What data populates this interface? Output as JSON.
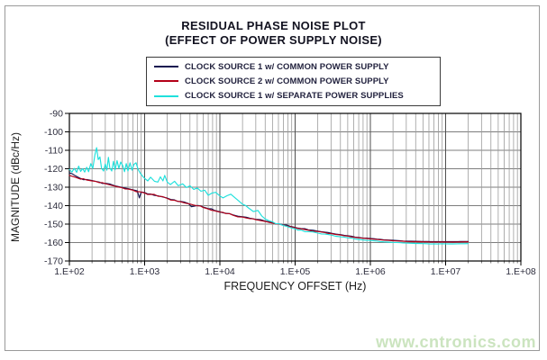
{
  "page": {
    "watermark": "www.cntronics.com",
    "watermark_color": "#cbe4bf"
  },
  "chart_data": {
    "type": "line",
    "title": "RESIDUAL PHASE NOISE PLOT",
    "subtitle": "(EFFECT OF POWER SUPPLY NOISE)",
    "xlabel": "FREQUENCY OFFSET (Hz)",
    "ylabel": "MAGNITUDE (dBc/Hz)",
    "x_scale": "log",
    "xlim": [
      100,
      100000000
    ],
    "ylim": [
      -170,
      -90
    ],
    "grid": true,
    "legend_position": "top",
    "x_ticks": [
      {
        "label": "1.E+02",
        "value": 100
      },
      {
        "label": "1.E+03",
        "value": 1000
      },
      {
        "label": "1.E+04",
        "value": 10000
      },
      {
        "label": "1.E+05",
        "value": 100000
      },
      {
        "label": "1.E+06",
        "value": 1000000
      },
      {
        "label": "1.E+07",
        "value": 10000000
      },
      {
        "label": "1.E+08",
        "value": 100000000
      }
    ],
    "y_ticks": [
      {
        "label": "-90",
        "value": -90
      },
      {
        "label": "-100",
        "value": -100
      },
      {
        "label": "-110",
        "value": -110
      },
      {
        "label": "-120",
        "value": -120
      },
      {
        "label": "-130",
        "value": -130
      },
      {
        "label": "-140",
        "value": -140
      },
      {
        "label": "-150",
        "value": -150
      },
      {
        "label": "-160",
        "value": -160
      },
      {
        "label": "-170",
        "value": -170
      }
    ],
    "series": [
      {
        "name": "CLOCK SOURCE 1 w/ COMMON POWER SUPPLY",
        "color": "#141450",
        "jitter_db": 0.5,
        "points": [
          [
            100,
            -122.2
          ],
          [
            120,
            -123.8
          ],
          [
            140,
            -125.2
          ],
          [
            170,
            -125.8
          ],
          [
            200,
            -126.4
          ],
          [
            250,
            -127.2
          ],
          [
            300,
            -127.9
          ],
          [
            400,
            -129.2
          ],
          [
            500,
            -130.1
          ],
          [
            600,
            -130.8
          ],
          [
            700,
            -131.4
          ],
          [
            800,
            -132.0
          ],
          [
            850,
            -135.8
          ],
          [
            900,
            -132.6
          ],
          [
            1000,
            -132.9
          ],
          [
            1200,
            -133.7
          ],
          [
            1500,
            -134.7
          ],
          [
            2000,
            -135.9
          ],
          [
            2500,
            -136.9
          ],
          [
            3000,
            -137.7
          ],
          [
            3800,
            -138.8
          ],
          [
            4200,
            -140.6
          ],
          [
            5000,
            -139.9
          ],
          [
            6000,
            -140.8
          ],
          [
            7000,
            -141.6
          ],
          [
            8500,
            -142.6
          ],
          [
            10000,
            -143.3
          ],
          [
            12000,
            -144.1
          ],
          [
            15000,
            -145.0
          ],
          [
            20000,
            -146.0
          ],
          [
            25000,
            -146.8
          ],
          [
            30000,
            -147.4
          ],
          [
            40000,
            -148.4
          ],
          [
            50000,
            -149.2
          ],
          [
            60000,
            -149.8
          ],
          [
            70000,
            -150.4
          ],
          [
            85000,
            -151.1
          ],
          [
            100000,
            -151.8
          ],
          [
            120000,
            -152.4
          ],
          [
            150000,
            -153.1
          ],
          [
            200000,
            -153.8
          ],
          [
            250000,
            -154.4
          ],
          [
            300000,
            -154.9
          ],
          [
            400000,
            -155.7
          ],
          [
            500000,
            -156.3
          ],
          [
            700000,
            -157.2
          ],
          [
            1000000,
            -157.8
          ],
          [
            1500000,
            -158.5
          ],
          [
            2000000,
            -158.8
          ],
          [
            3000000,
            -159.2
          ],
          [
            4000000,
            -159.3
          ],
          [
            5000000,
            -159.4
          ],
          [
            7000000,
            -159.5
          ],
          [
            10000000,
            -159.5
          ],
          [
            14000000,
            -159.5
          ],
          [
            20000000,
            -159.4
          ]
        ]
      },
      {
        "name": "CLOCK SOURCE 2 w/ COMMON POWER SUPPLY",
        "color": "#b30018",
        "jitter_db": 0.5,
        "points": [
          [
            100,
            -123.6
          ],
          [
            120,
            -124.6
          ],
          [
            140,
            -125.6
          ],
          [
            170,
            -126.1
          ],
          [
            200,
            -126.6
          ],
          [
            250,
            -127.5
          ],
          [
            300,
            -128.1
          ],
          [
            400,
            -129.4
          ],
          [
            500,
            -130.3
          ],
          [
            600,
            -131.0
          ],
          [
            700,
            -131.6
          ],
          [
            850,
            -132.4
          ],
          [
            1000,
            -133.1
          ],
          [
            1200,
            -133.9
          ],
          [
            1500,
            -134.9
          ],
          [
            2000,
            -136.1
          ],
          [
            2500,
            -137.1
          ],
          [
            3000,
            -137.9
          ],
          [
            4000,
            -139.1
          ],
          [
            5000,
            -140.1
          ],
          [
            6000,
            -141.0
          ],
          [
            7000,
            -141.8
          ],
          [
            8500,
            -142.8
          ],
          [
            10000,
            -143.5
          ],
          [
            12000,
            -144.3
          ],
          [
            15000,
            -145.2
          ],
          [
            20000,
            -146.2
          ],
          [
            25000,
            -147.0
          ],
          [
            30000,
            -147.6
          ],
          [
            40000,
            -148.6
          ],
          [
            50000,
            -149.4
          ],
          [
            60000,
            -150.0
          ],
          [
            70000,
            -150.6
          ],
          [
            85000,
            -151.3
          ],
          [
            100000,
            -152.0
          ],
          [
            120000,
            -152.6
          ],
          [
            150000,
            -153.3
          ],
          [
            200000,
            -154.0
          ],
          [
            250000,
            -154.6
          ],
          [
            300000,
            -155.1
          ],
          [
            400000,
            -155.9
          ],
          [
            500000,
            -156.5
          ],
          [
            700000,
            -157.4
          ],
          [
            1000000,
            -158.0
          ],
          [
            1500000,
            -158.7
          ],
          [
            2000000,
            -159.0
          ],
          [
            3000000,
            -159.4
          ],
          [
            4000000,
            -159.5
          ],
          [
            5000000,
            -159.6
          ],
          [
            7000000,
            -159.7
          ],
          [
            10000000,
            -159.7
          ],
          [
            14000000,
            -159.7
          ],
          [
            20000000,
            -159.6
          ]
        ]
      },
      {
        "name": "CLOCK SOURCE 1 w/ SEPARATE POWER SUPPLIES",
        "color": "#1fe0dc",
        "jitter_db": 0.9,
        "points": [
          [
            100,
            -120.3
          ],
          [
            108,
            -121.8
          ],
          [
            116,
            -119.8
          ],
          [
            125,
            -121.9
          ],
          [
            133,
            -118.6
          ],
          [
            141,
            -121.4
          ],
          [
            150,
            -119.9
          ],
          [
            160,
            -121.8
          ],
          [
            170,
            -119.2
          ],
          [
            180,
            -121.6
          ],
          [
            193,
            -117.2
          ],
          [
            205,
            -119.8
          ],
          [
            218,
            -112.5
          ],
          [
            230,
            -108.6
          ],
          [
            242,
            -115.0
          ],
          [
            255,
            -113.6
          ],
          [
            268,
            -119.8
          ],
          [
            285,
            -121.2
          ],
          [
            300,
            -117.4
          ],
          [
            315,
            -120.8
          ],
          [
            330,
            -113.8
          ],
          [
            345,
            -119.6
          ],
          [
            365,
            -121.2
          ],
          [
            385,
            -116.0
          ],
          [
            405,
            -120.6
          ],
          [
            430,
            -115.6
          ],
          [
            455,
            -119.8
          ],
          [
            480,
            -116.4
          ],
          [
            510,
            -118.2
          ],
          [
            540,
            -121.6
          ],
          [
            570,
            -117.2
          ],
          [
            600,
            -121.2
          ],
          [
            640,
            -116.8
          ],
          [
            680,
            -120.8
          ],
          [
            720,
            -117.6
          ],
          [
            770,
            -116.8
          ],
          [
            820,
            -120.4
          ],
          [
            880,
            -122.6
          ],
          [
            950,
            -124.2
          ],
          [
            1000,
            -125.2
          ],
          [
            1100,
            -126.6
          ],
          [
            1200,
            -124.6
          ],
          [
            1350,
            -126.8
          ],
          [
            1500,
            -127.2
          ],
          [
            1620,
            -124.4
          ],
          [
            1750,
            -126.6
          ],
          [
            1850,
            -123.6
          ],
          [
            2000,
            -127.2
          ],
          [
            2200,
            -128.6
          ],
          [
            2500,
            -126.8
          ],
          [
            2800,
            -129.2
          ],
          [
            3200,
            -128.2
          ],
          [
            3600,
            -130.2
          ],
          [
            4000,
            -129.2
          ],
          [
            4500,
            -131.2
          ],
          [
            5000,
            -130.4
          ],
          [
            5600,
            -132.2
          ],
          [
            6300,
            -131.6
          ],
          [
            7000,
            -134.4
          ],
          [
            7800,
            -133.2
          ],
          [
            8800,
            -132.8
          ],
          [
            10000,
            -134.8
          ],
          [
            11000,
            -135.8
          ],
          [
            12500,
            -134.6
          ],
          [
            14000,
            -133.8
          ],
          [
            16000,
            -135.8
          ],
          [
            18000,
            -137.6
          ],
          [
            20000,
            -139.2
          ],
          [
            24000,
            -141.2
          ],
          [
            28000,
            -143.2
          ],
          [
            32000,
            -142.6
          ],
          [
            36000,
            -145.6
          ],
          [
            40000,
            -147.2
          ],
          [
            45000,
            -148.2
          ],
          [
            50000,
            -148.8
          ],
          [
            60000,
            -149.8
          ],
          [
            70000,
            -150.8
          ],
          [
            85000,
            -151.8
          ],
          [
            100000,
            -152.6
          ],
          [
            120000,
            -153.2
          ],
          [
            150000,
            -154.1
          ],
          [
            200000,
            -154.9
          ],
          [
            250000,
            -155.4
          ],
          [
            300000,
            -155.9
          ],
          [
            400000,
            -156.9
          ],
          [
            500000,
            -157.4
          ],
          [
            700000,
            -158.3
          ],
          [
            1000000,
            -158.9
          ],
          [
            1500000,
            -159.6
          ],
          [
            2000000,
            -159.9
          ],
          [
            3000000,
            -160.3
          ],
          [
            4000000,
            -160.5
          ],
          [
            5000000,
            -160.6
          ],
          [
            7000000,
            -160.7
          ],
          [
            10000000,
            -160.7
          ],
          [
            14000000,
            -160.7
          ],
          [
            20000000,
            -160.6
          ]
        ]
      }
    ]
  }
}
